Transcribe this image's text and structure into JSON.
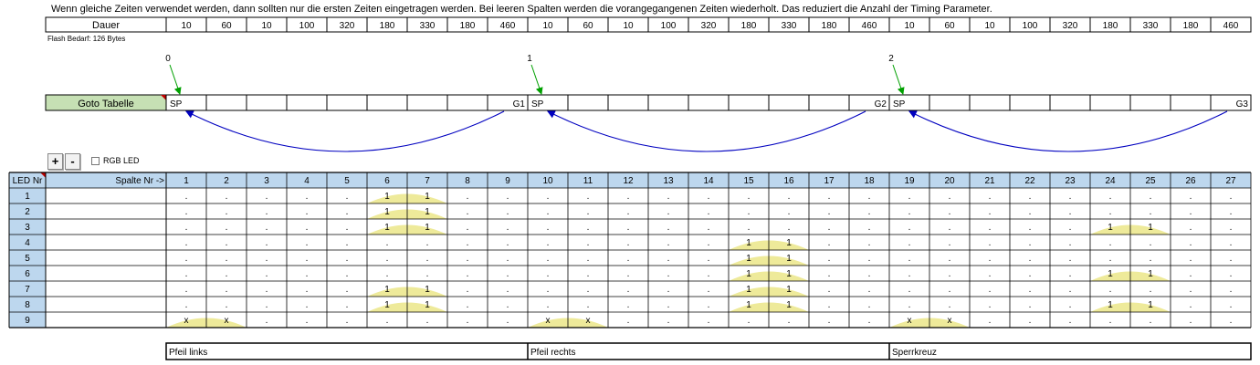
{
  "info_text": "Wenn gleiche Zeiten verwendet werden, dann sollten nur die ersten Zeiten eingetragen werden. Bei leeren Spalten werden die vorangegangenen Zeiten wiederholt. Das reduziert die Anzahl der Timing Parameter.",
  "dauer": {
    "label": "Dauer",
    "values": [
      "10",
      "60",
      "10",
      "100",
      "320",
      "180",
      "330",
      "180",
      "460",
      "10",
      "60",
      "10",
      "100",
      "320",
      "180",
      "330",
      "180",
      "460",
      "10",
      "60",
      "10",
      "100",
      "320",
      "180",
      "330",
      "180",
      "460"
    ]
  },
  "flash_text": "Flash Bedarf: 126 Bytes",
  "goto": {
    "label": "Goto Tabelle",
    "label_bg": "#c6e0b4",
    "cells": [
      "SP",
      "",
      "",
      "",
      "",
      "",
      "",
      "",
      "G1",
      "SP",
      "",
      "",
      "",
      "",
      "",
      "",
      "",
      "G2",
      "SP",
      "",
      "",
      "",
      "",
      "",
      "",
      "",
      "G3"
    ],
    "arrow_numbers": [
      "0",
      "1",
      "2"
    ],
    "arrow_number_columns": [
      1,
      10,
      19
    ],
    "green_arrow_color": "#00a000",
    "blue_arrow_color": "#0000c0"
  },
  "controls": {
    "plus_label": "+",
    "minus_label": "-",
    "rgb_label": "RGB LED",
    "rgb_checked": false
  },
  "table": {
    "led_header": "LED Nr",
    "spalte_header": "Spalte Nr ->",
    "header_bg": "#bdd7ee",
    "hump_color": "#eeea9a",
    "column_numbers": [
      "1",
      "2",
      "3",
      "4",
      "5",
      "6",
      "7",
      "8",
      "9",
      "10",
      "11",
      "12",
      "13",
      "14",
      "15",
      "16",
      "17",
      "18",
      "19",
      "20",
      "21",
      "22",
      "23",
      "24",
      "25",
      "26",
      "27"
    ],
    "rows": [
      {
        "led": "1",
        "cells": [
          ".",
          ".",
          ".",
          ".",
          ".",
          "1",
          "1",
          ".",
          ".",
          ".",
          ".",
          ".",
          ".",
          ".",
          ".",
          ".",
          ".",
          ".",
          ".",
          ".",
          ".",
          ".",
          ".",
          ".",
          ".",
          ".",
          "."
        ]
      },
      {
        "led": "2",
        "cells": [
          ".",
          ".",
          ".",
          ".",
          ".",
          "1",
          "1",
          ".",
          ".",
          ".",
          ".",
          ".",
          ".",
          ".",
          ".",
          ".",
          ".",
          ".",
          ".",
          ".",
          ".",
          ".",
          ".",
          ".",
          ".",
          ".",
          "."
        ]
      },
      {
        "led": "3",
        "cells": [
          ".",
          ".",
          ".",
          ".",
          ".",
          "1",
          "1",
          ".",
          ".",
          ".",
          ".",
          ".",
          ".",
          ".",
          ".",
          ".",
          ".",
          ".",
          ".",
          ".",
          ".",
          ".",
          ".",
          "1",
          "1",
          ".",
          "."
        ]
      },
      {
        "led": "4",
        "cells": [
          ".",
          ".",
          ".",
          ".",
          ".",
          ".",
          ".",
          ".",
          ".",
          ".",
          ".",
          ".",
          ".",
          ".",
          "1",
          "1",
          ".",
          ".",
          ".",
          ".",
          ".",
          ".",
          ".",
          ".",
          ".",
          ".",
          "."
        ]
      },
      {
        "led": "5",
        "cells": [
          ".",
          ".",
          ".",
          ".",
          ".",
          ".",
          ".",
          ".",
          ".",
          ".",
          ".",
          ".",
          ".",
          ".",
          "1",
          "1",
          ".",
          ".",
          ".",
          ".",
          ".",
          ".",
          ".",
          ".",
          ".",
          ".",
          "."
        ]
      },
      {
        "led": "6",
        "cells": [
          ".",
          ".",
          ".",
          ".",
          ".",
          ".",
          ".",
          ".",
          ".",
          ".",
          ".",
          ".",
          ".",
          ".",
          "1",
          "1",
          ".",
          ".",
          ".",
          ".",
          ".",
          ".",
          ".",
          "1",
          "1",
          ".",
          "."
        ]
      },
      {
        "led": "7",
        "cells": [
          ".",
          ".",
          ".",
          ".",
          ".",
          "1",
          "1",
          ".",
          ".",
          ".",
          ".",
          ".",
          ".",
          ".",
          "1",
          "1",
          ".",
          ".",
          ".",
          ".",
          ".",
          ".",
          ".",
          ".",
          ".",
          ".",
          "."
        ]
      },
      {
        "led": "8",
        "cells": [
          ".",
          ".",
          ".",
          ".",
          ".",
          "1",
          "1",
          ".",
          ".",
          ".",
          ".",
          ".",
          ".",
          ".",
          "1",
          "1",
          ".",
          ".",
          ".",
          ".",
          ".",
          ".",
          ".",
          "1",
          "1",
          ".",
          "."
        ]
      },
      {
        "led": "9",
        "cells": [
          "x",
          "x",
          ".",
          ".",
          ".",
          ".",
          ".",
          ".",
          ".",
          "x",
          "x",
          ".",
          ".",
          ".",
          ".",
          ".",
          ".",
          ".",
          "x",
          "x",
          ".",
          ".",
          ".",
          ".",
          ".",
          ".",
          "."
        ]
      }
    ]
  },
  "footer_sections": [
    {
      "label": "Pfeil links"
    },
    {
      "label": "Pfeil rechts"
    },
    {
      "label": "Sperrkreuz"
    }
  ]
}
